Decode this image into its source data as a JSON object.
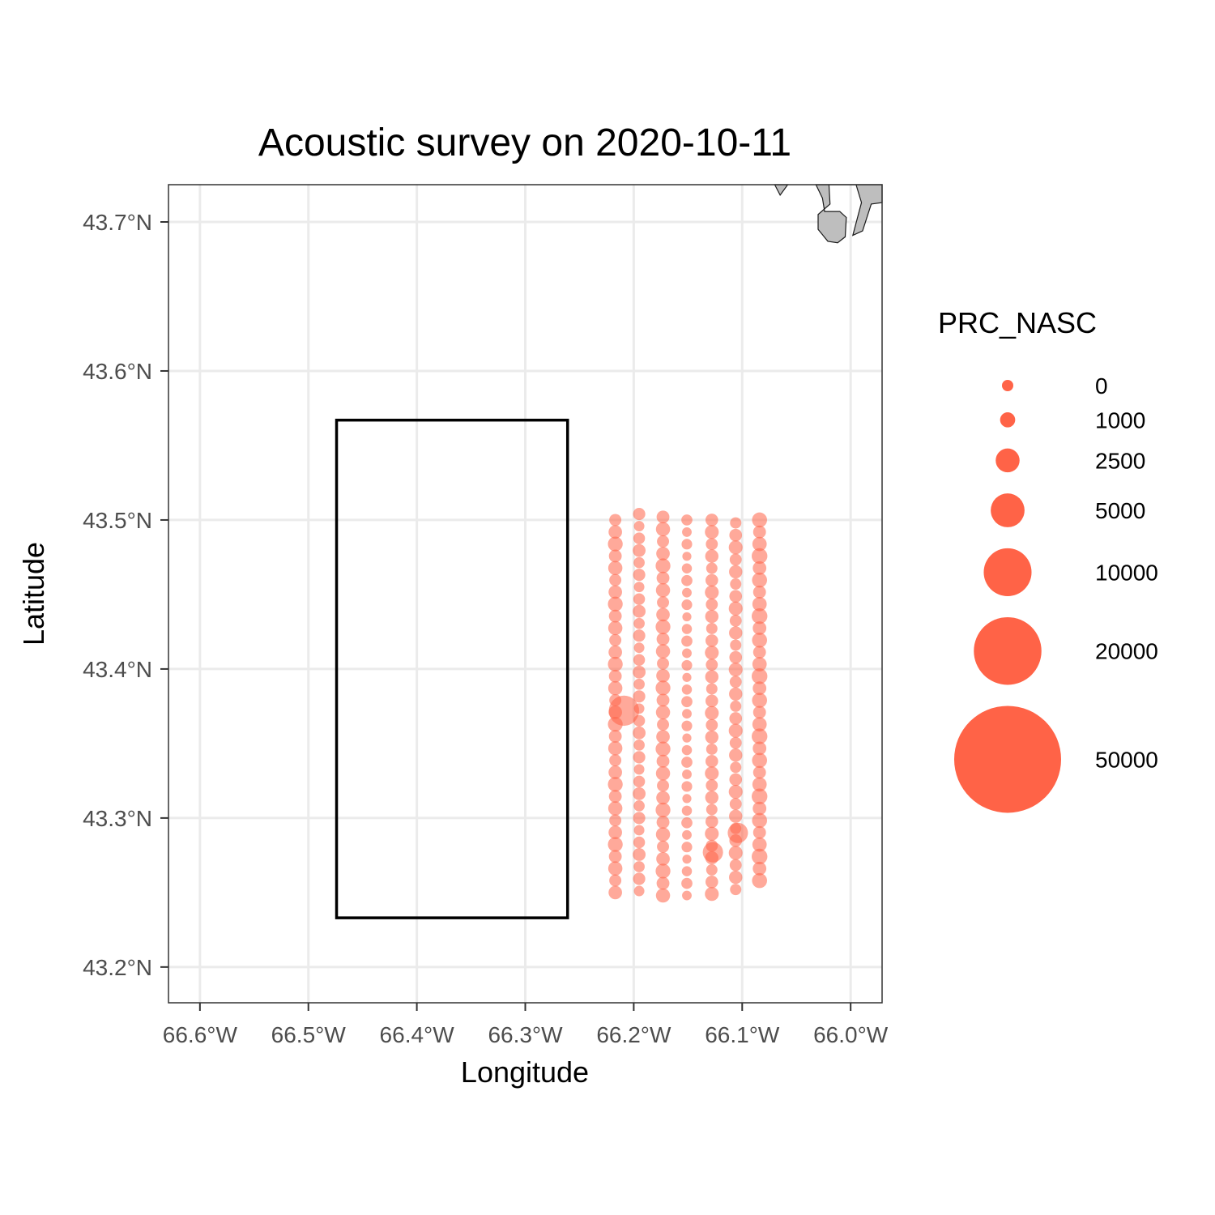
{
  "chart_data": {
    "type": "scatter",
    "title": "Acoustic survey on 2020-10-11",
    "xlabel": "Longitude",
    "ylabel": "Latitude",
    "xlim": [
      -66.629,
      -65.971
    ],
    "ylim": [
      43.176,
      43.725
    ],
    "x_ticks": [
      {
        "value": -66.6,
        "label": "66.6°W"
      },
      {
        "value": -66.5,
        "label": "66.5°W"
      },
      {
        "value": -66.4,
        "label": "66.4°W"
      },
      {
        "value": -66.3,
        "label": "66.3°W"
      },
      {
        "value": -66.2,
        "label": "66.2°W"
      },
      {
        "value": -66.1,
        "label": "66.1°W"
      },
      {
        "value": -66.0,
        "label": "66.0°W"
      }
    ],
    "y_ticks": [
      {
        "value": 43.2,
        "label": "43.2°N"
      },
      {
        "value": 43.3,
        "label": "43.3°N"
      },
      {
        "value": 43.4,
        "label": "43.4°N"
      },
      {
        "value": 43.5,
        "label": "43.5°N"
      },
      {
        "value": 43.6,
        "label": "43.6°N"
      },
      {
        "value": 43.7,
        "label": "43.7°N"
      }
    ],
    "grid": true,
    "point_color": "#ff6347",
    "point_opacity": 0.55,
    "size_scale_max": 50000,
    "legend": {
      "title": "PRC_NASC",
      "placement": "right",
      "breaks": [
        0,
        1000,
        2500,
        5000,
        10000,
        20000,
        50000
      ],
      "labels": [
        "0",
        "1000",
        "2500",
        "5000",
        "10000",
        "20000",
        "50000"
      ]
    },
    "survey_box": {
      "lon_min": -66.474,
      "lon_max": -66.261,
      "lat_min": 43.233,
      "lat_max": 43.567
    },
    "land_polygons": [
      [
        [
          -66.07,
          43.725
        ],
        [
          -66.058,
          43.725
        ],
        [
          -66.065,
          43.718
        ]
      ],
      [
        [
          -66.032,
          43.725
        ],
        [
          -66.02,
          43.725
        ],
        [
          -66.019,
          43.712
        ],
        [
          -66.03,
          43.705
        ],
        [
          -66.03,
          43.695
        ],
        [
          -66.021,
          43.687
        ],
        [
          -66.012,
          43.686
        ],
        [
          -66.005,
          43.69
        ],
        [
          -66.004,
          43.703
        ],
        [
          -66.01,
          43.707
        ],
        [
          -66.024,
          43.707
        ],
        [
          -66.026,
          43.716
        ]
      ],
      [
        [
          -66.02,
          43.725
        ],
        [
          -65.971,
          43.725
        ],
        [
          -65.971,
          43.713
        ],
        [
          -65.981,
          43.712
        ],
        [
          -65.989,
          43.694
        ],
        [
          -65.998,
          43.691
        ],
        [
          -65.99,
          43.713
        ],
        [
          -65.995,
          43.725
        ]
      ]
    ],
    "transects": [
      {
        "lon": -66.217,
        "lat_start": 43.5,
        "lat_end": 43.25,
        "typical_nasc": 800
      },
      {
        "lon": -66.195,
        "lat_start": 43.504,
        "lat_end": 43.251,
        "typical_nasc": 600
      },
      {
        "lon": -66.173,
        "lat_start": 43.502,
        "lat_end": 43.248,
        "typical_nasc": 800
      },
      {
        "lon": -66.151,
        "lat_start": 43.5,
        "lat_end": 43.248,
        "typical_nasc": 450
      },
      {
        "lon": -66.128,
        "lat_start": 43.5,
        "lat_end": 43.249,
        "typical_nasc": 700
      },
      {
        "lon": -66.106,
        "lat_start": 43.498,
        "lat_end": 43.252,
        "typical_nasc": 700
      },
      {
        "lon": -66.084,
        "lat_start": 43.5,
        "lat_end": 43.258,
        "typical_nasc": 900
      }
    ],
    "notable_points": [
      {
        "lon": -66.209,
        "lat": 43.372,
        "nasc": 4000
      },
      {
        "lon": -66.104,
        "lat": 43.29,
        "nasc": 1800
      },
      {
        "lon": -66.127,
        "lat": 43.277,
        "nasc": 1800
      }
    ]
  }
}
